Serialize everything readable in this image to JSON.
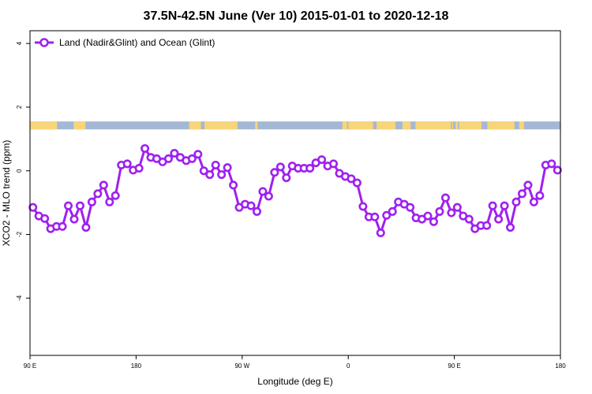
{
  "chart_data": {
    "type": "line",
    "title": "37.5N-42.5N June (Ver 10)   2015-01-01 to 2020-12-18",
    "xlabel": "Longitude (deg E)",
    "ylabel": "XCO2 - MLO trend (ppm)",
    "xlim": [
      90,
      540
    ],
    "ylim": [
      -5.8,
      4.4
    ],
    "x_ticks": [
      {
        "value": 90,
        "label": "90 E"
      },
      {
        "value": 180,
        "label": "180"
      },
      {
        "value": 270,
        "label": "90 W"
      },
      {
        "value": 360,
        "label": "0"
      },
      {
        "value": 450,
        "label": "90 E"
      },
      {
        "value": 540,
        "label": "180"
      }
    ],
    "y_ticks": [
      {
        "value": 4,
        "label": "4"
      },
      {
        "value": 2,
        "label": "2"
      },
      {
        "value": 0,
        "label": "0"
      },
      {
        "value": -2,
        "label": "-2"
      },
      {
        "value": -4,
        "label": "-4"
      }
    ],
    "legend": {
      "position": "top-left",
      "entries": [
        "Land (Nadir&Glint) and Ocean (Glint)"
      ]
    },
    "series": [
      {
        "name": "Land (Nadir&Glint) and Ocean (Glint)",
        "color": "#a020f0",
        "x": [
          92.5,
          97.5,
          102.5,
          107.5,
          112.5,
          117.5,
          122.5,
          127.5,
          132.5,
          137.5,
          142.5,
          147.5,
          152.5,
          157.5,
          162.5,
          167.5,
          172.5,
          177.5,
          182.5,
          187.5,
          192.5,
          197.5,
          202.5,
          207.5,
          212.5,
          217.5,
          222.5,
          227.5,
          232.5,
          237.5,
          242.5,
          247.5,
          252.5,
          257.5,
          262.5,
          267.5,
          272.5,
          277.5,
          282.5,
          287.5,
          292.5,
          297.5,
          302.5,
          307.5,
          312.5,
          317.5,
          322.5,
          327.5,
          332.5,
          337.5,
          342.5,
          347.5,
          352.5,
          357.5,
          362.5,
          367.5,
          372.5,
          377.5,
          382.5,
          387.5,
          392.5,
          397.5,
          402.5,
          407.5,
          412.5,
          417.5,
          422.5,
          427.5,
          432.5,
          437.5,
          442.5,
          447.5,
          452.5,
          457.5,
          462.5,
          467.5,
          472.5,
          477.5,
          482.5,
          487.5,
          492.5,
          497.5,
          502.5,
          507.5,
          512.5,
          517.5,
          522.5,
          527.5,
          532.5,
          537.5
        ],
        "values": [
          -1.15,
          -1.42,
          -1.5,
          -1.82,
          -1.75,
          -1.75,
          -1.1,
          -1.52,
          -1.1,
          -1.78,
          -0.98,
          -0.72,
          -0.45,
          -0.98,
          -0.78,
          0.18,
          0.22,
          0.02,
          0.08,
          0.7,
          0.42,
          0.38,
          0.28,
          0.38,
          0.55,
          0.42,
          0.32,
          0.38,
          0.52,
          0.0,
          -0.12,
          0.18,
          -0.12,
          0.1,
          -0.45,
          -1.15,
          -1.05,
          -1.1,
          -1.28,
          -0.65,
          -0.8,
          -0.05,
          0.12,
          -0.22,
          0.15,
          0.08,
          0.08,
          0.08,
          0.25,
          0.35,
          0.15,
          0.22,
          -0.08,
          -0.18,
          -0.25,
          -0.38,
          -1.12,
          -1.45,
          -1.45,
          -1.95,
          -1.4,
          -1.28,
          -0.98,
          -1.05,
          -1.15,
          -1.48,
          -1.52,
          -1.42,
          -1.6,
          -1.28,
          -0.85,
          -1.32,
          -1.15,
          -1.42,
          -1.52,
          -1.82,
          -1.72,
          -1.72,
          -1.1,
          -1.52,
          -1.1,
          -1.78,
          -0.98,
          -0.72,
          -0.45,
          -0.98,
          -0.78,
          0.18,
          0.22,
          0.02
        ]
      }
    ],
    "grid": false,
    "land_ocean_band": {
      "y_range": [
        1.3,
        1.55
      ],
      "land_color": "#f7d57a",
      "ocean_color": "#a4b8d6",
      "land_intervals_lon": [
        [
          90,
          113
        ],
        [
          127,
          137
        ],
        [
          225,
          235
        ],
        [
          238,
          266
        ],
        [
          281,
          283
        ],
        [
          355,
          359
        ],
        [
          360,
          381
        ],
        [
          384,
          392
        ],
        [
          391,
          400
        ],
        [
          406,
          413
        ],
        [
          417,
          447
        ],
        [
          448,
          449
        ],
        [
          451,
          453
        ],
        [
          454,
          473
        ],
        [
          478,
          480
        ],
        [
          480,
          501
        ],
        [
          505,
          509
        ]
      ]
    }
  },
  "colors": {
    "series_line": "#a020f0",
    "axis": "#000000",
    "background": "#ffffff"
  }
}
